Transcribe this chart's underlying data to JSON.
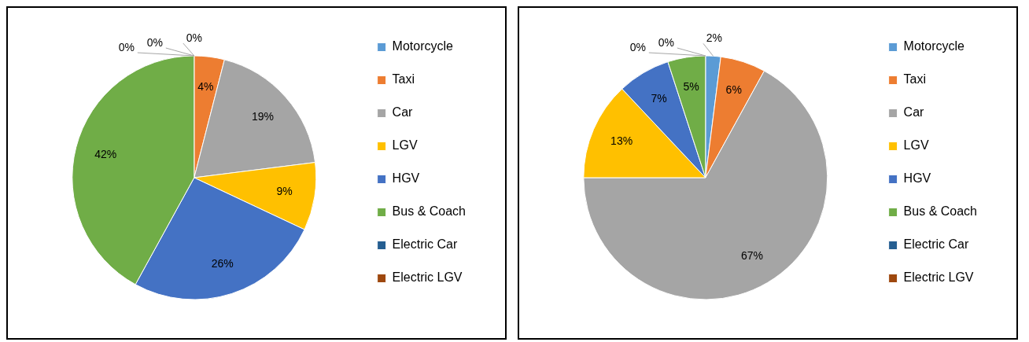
{
  "chart_data": [
    {
      "type": "pie",
      "categories": [
        "Motorcycle",
        "Taxi",
        "Car",
        "LGV",
        "HGV",
        "Bus & Coach",
        "Electric Car",
        "Electric LGV"
      ],
      "values": [
        0,
        4,
        19,
        9,
        26,
        42,
        0,
        0
      ],
      "value_labels": [
        "0%",
        "4%",
        "19%",
        "9%",
        "26%",
        "42%",
        "0%",
        "0%"
      ],
      "colors": [
        "#5b9bd5",
        "#ed7d31",
        "#a5a5a5",
        "#ffc000",
        "#4472c4",
        "#70ad47",
        "#255e91",
        "#9e480e"
      ],
      "legend": "right"
    },
    {
      "type": "pie",
      "categories": [
        "Motorcycle",
        "Taxi",
        "Car",
        "LGV",
        "HGV",
        "Bus & Coach",
        "Electric Car",
        "Electric LGV"
      ],
      "values": [
        2,
        6,
        67,
        13,
        7,
        5,
        0,
        0
      ],
      "value_labels": [
        "2%",
        "6%",
        "67%",
        "13%",
        "7%",
        "5%",
        "0%",
        "0%"
      ],
      "colors": [
        "#5b9bd5",
        "#ed7d31",
        "#a5a5a5",
        "#ffc000",
        "#4472c4",
        "#70ad47",
        "#255e91",
        "#9e480e"
      ],
      "legend": "right"
    }
  ]
}
